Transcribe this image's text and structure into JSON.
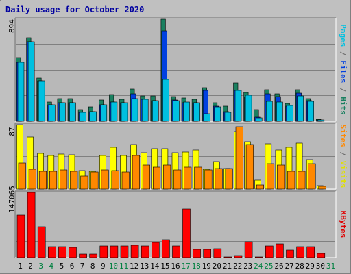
{
  "chart_data": [
    {
      "type": "bar",
      "title": "Daily usage for October 2020",
      "ymax_label": "894",
      "ylim": [
        0,
        894
      ],
      "grid": true,
      "side_label": [
        {
          "text": "Pages",
          "color": "#00c0e0"
        },
        {
          "text": " / ",
          "color": "#666666"
        },
        {
          "text": "Files",
          "color": "#0040e0"
        },
        {
          "text": " / ",
          "color": "#666666"
        },
        {
          "text": "Hits",
          "color": "#1a8060"
        }
      ],
      "series": [
        {
          "name": "Hits",
          "color": "#1a8060",
          "values": [
            556,
            734,
            379,
            166,
            197,
            197,
            103,
            124,
            183,
            234,
            193,
            284,
            224,
            219,
            894,
            216,
            203,
            190,
            296,
            160,
            130,
            335,
            254,
            103,
            273,
            240,
            156,
            273,
            199,
            16
          ]
        },
        {
          "name": "Files",
          "color": "#0040e0",
          "values": [
            515,
            695,
            351,
            145,
            159,
            163,
            80,
            82,
            146,
            165,
            164,
            238,
            194,
            180,
            791,
            185,
            164,
            160,
            268,
            132,
            86,
            268,
            211,
            33,
            240,
            218,
            134,
            247,
            177,
            12
          ]
        },
        {
          "name": "Pages",
          "color": "#00c0e0",
          "values": [
            514,
            693,
            352,
            145,
            160,
            164,
            79,
            83,
            146,
            166,
            164,
            197,
            189,
            181,
            368,
            182,
            167,
            163,
            66,
            123,
            78,
            268,
            227,
            32,
            176,
            170,
            136,
            224,
            173,
            11
          ]
        }
      ]
    },
    {
      "type": "bar",
      "ymax_label": "87",
      "ylim": [
        0,
        87
      ],
      "grid": true,
      "side_label": [
        {
          "text": "Sites",
          "color": "#ff8800"
        },
        {
          "text": " / ",
          "color": "#666666"
        },
        {
          "text": "Visits",
          "color": "#e0e000"
        }
      ],
      "series": [
        {
          "name": "Visits",
          "color": "#ffff00",
          "values": [
            87,
            70,
            48,
            45,
            47,
            46,
            25,
            24,
            45,
            56,
            45,
            60,
            49,
            55,
            55,
            49,
            50,
            53,
            27,
            37,
            28,
            78,
            64,
            12,
            61,
            53,
            56,
            62,
            40,
            5
          ]
        },
        {
          "name": "Sites",
          "color": "#ff8800",
          "values": [
            35,
            27,
            24,
            24,
            26,
            24,
            18,
            23,
            26,
            25,
            23,
            45,
            32,
            30,
            32,
            26,
            30,
            30,
            26,
            28,
            28,
            84,
            60,
            6,
            34,
            32,
            24,
            24,
            34,
            4
          ]
        }
      ]
    },
    {
      "type": "bar",
      "ymax_label": "147065",
      "ylim": [
        0,
        147065
      ],
      "grid": true,
      "side_label": [
        {
          "text": "KBytes",
          "color": "#e00000"
        }
      ],
      "series": [
        {
          "name": "KBytes",
          "color": "#ff0000",
          "values": [
            96000,
            147065,
            70000,
            24000,
            25000,
            23000,
            8000,
            8000,
            26000,
            26000,
            27000,
            28000,
            27000,
            34000,
            40000,
            26000,
            110000,
            19000,
            18000,
            20000,
            1000,
            5000,
            36000,
            2000,
            27000,
            31000,
            17000,
            25000,
            25000,
            9000
          ]
        }
      ]
    }
  ],
  "x_labels": [
    "1",
    "2",
    "3",
    "4",
    "5",
    "6",
    "7",
    "8",
    "9",
    "10",
    "11",
    "12",
    "13",
    "14",
    "15",
    "16",
    "17",
    "18",
    "19",
    "20",
    "21",
    "22",
    "23",
    "24",
    "25",
    "26",
    "27",
    "28",
    "29",
    "30",
    "31"
  ],
  "colors": {
    "background": "#c0c0c0",
    "plot_background": "#b8b8b8",
    "title": "#0000a0",
    "weekday_label": "#000000",
    "weekend_label": "#008040",
    "gridline": "#808080"
  },
  "weekend_days": [
    3,
    4,
    10,
    11,
    17,
    18,
    24,
    25,
    31
  ]
}
